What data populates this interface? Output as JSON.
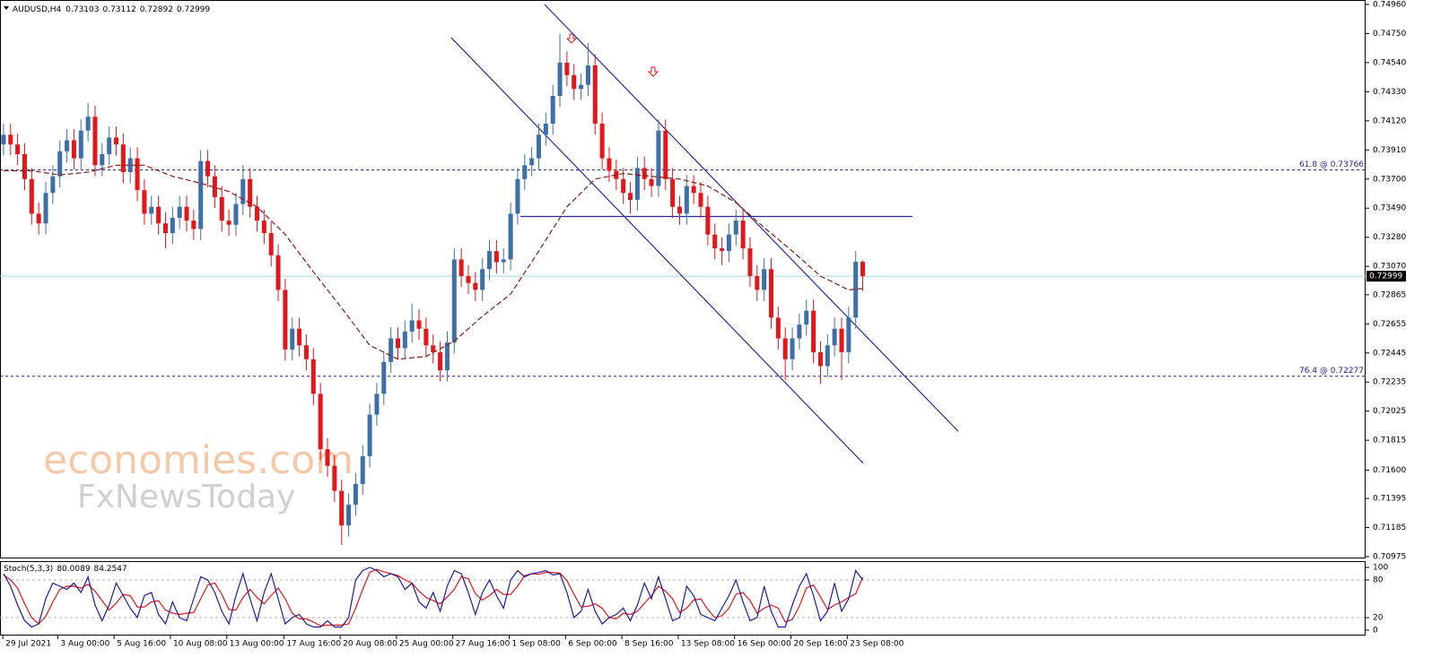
{
  "chart_data": [
    {
      "type": "candlestick",
      "title": "AUDUSD,H4",
      "up_color": "#3d6fa8",
      "down_color": "#e3161b",
      "xlim": [
        0,
        193.9
      ],
      "ylim": [
        0.70975,
        0.7496
      ],
      "xticks": [
        {
          "value": 0.4,
          "label": "29 Jul 2021"
        },
        {
          "value": 8.2,
          "label": "3 Aug 00:00"
        },
        {
          "value": 16.2,
          "label": "5 Aug 16:00"
        },
        {
          "value": 24.2,
          "label": "10 Aug 08:00"
        },
        {
          "value": 32.2,
          "label": "13 Aug 00:00"
        },
        {
          "value": 40.3,
          "label": "17 Aug 16:00"
        },
        {
          "value": 48.3,
          "label": "20 Aug 08:00"
        },
        {
          "value": 56.3,
          "label": "25 Aug 00:00"
        },
        {
          "value": 64.3,
          "label": "27 Aug 16:00"
        },
        {
          "value": 72.3,
          "label": "1 Sep 08:00"
        },
        {
          "value": 80.3,
          "label": "6 Sep 00:00"
        },
        {
          "value": 88.3,
          "label": "8 Sep 16:00"
        },
        {
          "value": 96.3,
          "label": "13 Sep 08:00"
        },
        {
          "value": 104.3,
          "label": "16 Sep 00:00"
        },
        {
          "value": 112.3,
          "label": "20 Sep 16:00"
        },
        {
          "value": 120.3,
          "label": "23 Sep 08:00"
        }
      ],
      "yticks": [
        {
          "value": 0.7496,
          "label": "0.74960"
        },
        {
          "value": 0.7475,
          "label": "0.74750"
        },
        {
          "value": 0.7454,
          "label": "0.74540"
        },
        {
          "value": 0.7433,
          "label": "0.74330"
        },
        {
          "value": 0.7412,
          "label": "0.74120"
        },
        {
          "value": 0.7391,
          "label": "0.73910"
        },
        {
          "value": 0.737,
          "label": "0.73700"
        },
        {
          "value": 0.7349,
          "label": "0.73490"
        },
        {
          "value": 0.7328,
          "label": "0.73280"
        },
        {
          "value": 0.7307,
          "label": "0.73070"
        },
        0.72865,
        0.72655,
        0.72445,
        0.72235,
        0.72025,
        0.71815,
        {
          "value": 0.716,
          "label": "0.71600"
        },
        0.71395,
        0.71185,
        0.70975
      ],
      "candles": {
        "open": [
          0.7395,
          0.7402,
          0.7395,
          0.7388,
          0.737,
          0.7345,
          0.7338,
          0.736,
          0.7372,
          0.739,
          0.7398,
          0.7385,
          0.7405,
          0.7415,
          0.738,
          0.7388,
          0.74,
          0.7395,
          0.7375,
          0.7385,
          0.7362,
          0.7345,
          0.735,
          0.7338,
          0.7331,
          0.7342,
          0.735,
          0.734,
          0.7334,
          0.7383,
          0.7372,
          0.7357,
          0.734,
          0.7337,
          0.7352,
          0.737,
          0.735,
          0.734,
          0.7331,
          0.7315,
          0.729,
          0.7247,
          0.7262,
          0.725,
          0.724,
          0.7215,
          0.7175,
          0.7163,
          0.7145,
          0.712,
          0.7135,
          0.715,
          0.717,
          0.72,
          0.7215,
          0.7238,
          0.7255,
          0.7248,
          0.726,
          0.7268,
          0.7262,
          0.725,
          0.7245,
          0.7232,
          0.7252,
          0.7312,
          0.73,
          0.7295,
          0.729,
          0.7305,
          0.7318,
          0.731,
          0.7312,
          0.7345,
          0.737,
          0.738,
          0.7385,
          0.7402,
          0.741,
          0.743,
          0.7454,
          0.7445,
          0.7435,
          0.7438,
          0.7452,
          0.741,
          0.7385,
          0.7376,
          0.737,
          0.736,
          0.7355,
          0.7378,
          0.737,
          0.7365,
          0.7405,
          0.737,
          0.735,
          0.7345,
          0.7365,
          0.736,
          0.735,
          0.733,
          0.732,
          0.7318,
          0.733,
          0.734,
          0.732,
          0.73,
          0.729,
          0.7305,
          0.727,
          0.7255,
          0.724,
          0.7255,
          0.7265,
          0.7275,
          0.7245,
          0.7235,
          0.725,
          0.7262,
          0.7245,
          0.727,
          0.73103
        ],
        "high": [
          0.741,
          0.741,
          0.7403,
          0.7396,
          0.7378,
          0.7353,
          0.7368,
          0.738,
          0.7398,
          0.7406,
          0.7406,
          0.7413,
          0.7425,
          0.7423,
          0.7396,
          0.7408,
          0.7408,
          0.7403,
          0.7393,
          0.7393,
          0.737,
          0.7358,
          0.7358,
          0.7346,
          0.735,
          0.7358,
          0.7358,
          0.7348,
          0.7391,
          0.7391,
          0.738,
          0.7365,
          0.7348,
          0.736,
          0.738,
          0.7378,
          0.7358,
          0.7348,
          0.7339,
          0.7323,
          0.7298,
          0.727,
          0.727,
          0.7258,
          0.7248,
          0.7223,
          0.7183,
          0.7171,
          0.7153,
          0.7143,
          0.7158,
          0.7178,
          0.7208,
          0.7223,
          0.7246,
          0.7263,
          0.7263,
          0.7268,
          0.728,
          0.7276,
          0.727,
          0.7258,
          0.7253,
          0.726,
          0.732,
          0.732,
          0.7308,
          0.7303,
          0.7313,
          0.7326,
          0.7326,
          0.732,
          0.7353,
          0.7378,
          0.7388,
          0.7393,
          0.741,
          0.7418,
          0.7438,
          0.7475,
          0.7462,
          0.7453,
          0.7446,
          0.7468,
          0.746,
          0.7418,
          0.7393,
          0.7384,
          0.7378,
          0.7368,
          0.7386,
          0.7386,
          0.7378,
          0.7413,
          0.7413,
          0.7378,
          0.7358,
          0.7373,
          0.7373,
          0.7368,
          0.7358,
          0.7338,
          0.7328,
          0.7338,
          0.7348,
          0.7348,
          0.7328,
          0.7308,
          0.7313,
          0.7313,
          0.7278,
          0.7263,
          0.7263,
          0.7273,
          0.7283,
          0.7283,
          0.7253,
          0.7258,
          0.727,
          0.727,
          0.7278,
          0.7318,
          0.73112
        ],
        "low": [
          0.7387,
          0.7387,
          0.738,
          0.7362,
          0.7337,
          0.733,
          0.733,
          0.7352,
          0.7364,
          0.7382,
          0.7377,
          0.7377,
          0.7397,
          0.7372,
          0.7372,
          0.738,
          0.7387,
          0.7367,
          0.7367,
          0.7354,
          0.7337,
          0.7337,
          0.733,
          0.732,
          0.7323,
          0.7334,
          0.7332,
          0.7326,
          0.7326,
          0.7364,
          0.7349,
          0.7332,
          0.7329,
          0.7329,
          0.7344,
          0.7342,
          0.7332,
          0.7323,
          0.7307,
          0.7282,
          0.7239,
          0.7239,
          0.7242,
          0.7232,
          0.7207,
          0.7167,
          0.7155,
          0.7137,
          0.7106,
          0.7112,
          0.7127,
          0.7142,
          0.7162,
          0.7192,
          0.7207,
          0.723,
          0.724,
          0.724,
          0.7252,
          0.7254,
          0.7242,
          0.7237,
          0.7224,
          0.7224,
          0.7244,
          0.7292,
          0.7287,
          0.7282,
          0.7282,
          0.7297,
          0.7302,
          0.7302,
          0.7304,
          0.7337,
          0.7362,
          0.7372,
          0.7377,
          0.7394,
          0.7402,
          0.7422,
          0.7437,
          0.7427,
          0.7427,
          0.743,
          0.7402,
          0.7377,
          0.7368,
          0.7362,
          0.7352,
          0.7345,
          0.7347,
          0.7362,
          0.7357,
          0.7357,
          0.7362,
          0.7342,
          0.7337,
          0.7337,
          0.7352,
          0.7342,
          0.7322,
          0.7312,
          0.7308,
          0.731,
          0.7322,
          0.7312,
          0.7292,
          0.7282,
          0.7282,
          0.7262,
          0.7247,
          0.7225,
          0.7232,
          0.7247,
          0.7257,
          0.7237,
          0.7222,
          0.7227,
          0.7242,
          0.7225,
          0.7237,
          0.7262,
          0.72892
        ],
        "close": [
          0.7402,
          0.7395,
          0.7388,
          0.737,
          0.7345,
          0.7338,
          0.736,
          0.7372,
          0.739,
          0.7398,
          0.7385,
          0.7405,
          0.7415,
          0.738,
          0.7388,
          0.74,
          0.7395,
          0.7375,
          0.7385,
          0.7362,
          0.7345,
          0.735,
          0.7338,
          0.7331,
          0.7342,
          0.735,
          0.734,
          0.7334,
          0.7383,
          0.7372,
          0.7357,
          0.734,
          0.7337,
          0.7352,
          0.737,
          0.735,
          0.734,
          0.7331,
          0.7315,
          0.729,
          0.7247,
          0.7262,
          0.725,
          0.724,
          0.7215,
          0.7175,
          0.7163,
          0.7145,
          0.712,
          0.7135,
          0.715,
          0.717,
          0.72,
          0.7215,
          0.7238,
          0.7255,
          0.7248,
          0.726,
          0.7268,
          0.7262,
          0.725,
          0.7245,
          0.7232,
          0.7252,
          0.7312,
          0.73,
          0.7295,
          0.729,
          0.7305,
          0.7318,
          0.731,
          0.7312,
          0.7345,
          0.737,
          0.738,
          0.7385,
          0.7402,
          0.741,
          0.743,
          0.7454,
          0.7445,
          0.7435,
          0.7438,
          0.7452,
          0.741,
          0.7385,
          0.7376,
          0.737,
          0.736,
          0.7355,
          0.7378,
          0.737,
          0.7365,
          0.7405,
          0.737,
          0.735,
          0.7345,
          0.7365,
          0.736,
          0.735,
          0.733,
          0.732,
          0.7318,
          0.733,
          0.734,
          0.732,
          0.73,
          0.729,
          0.7305,
          0.727,
          0.7255,
          0.724,
          0.7255,
          0.7265,
          0.7275,
          0.7245,
          0.7235,
          0.725,
          0.7262,
          0.7245,
          0.727,
          0.73103,
          0.72999
        ]
      },
      "moving_average": {
        "color": "#8b1a1a",
        "x": [
          0,
          4,
          8,
          12,
          16,
          20,
          24,
          28,
          32,
          36,
          40,
          44,
          48,
          52,
          56,
          60,
          64,
          68,
          72,
          76,
          80,
          84,
          88,
          92,
          96,
          100,
          104,
          108,
          112,
          116,
          120,
          122
        ],
        "values": [
          0.7376,
          0.7376,
          0.7373,
          0.7375,
          0.738,
          0.738,
          0.7372,
          0.7367,
          0.7361,
          0.735,
          0.733,
          0.7303,
          0.7277,
          0.725,
          0.724,
          0.7242,
          0.7253,
          0.7271,
          0.7287,
          0.7318,
          0.735,
          0.737,
          0.7374,
          0.7372,
          0.737,
          0.7365,
          0.7353,
          0.7335,
          0.7318,
          0.73,
          0.729,
          0.7291
        ]
      },
      "levels": [
        {
          "label": "61.8 @ 0.73766",
          "value": 0.73766,
          "color": "#1c1c9c"
        },
        {
          "label": "76.4 @ 0.72277",
          "value": 0.72277,
          "color": "#1c1c9c"
        }
      ],
      "trendlines": [
        {
          "x": [
            64.08,
            122.55
          ],
          "values": [
            0.7472,
            0.7165
          ],
          "color": "#2b2b9c"
        },
        {
          "x": [
            77.32,
            136.05
          ],
          "values": [
            0.7496,
            0.7188
          ],
          "color": "#2b2b9c"
        },
        {
          "x": [
            73.9,
            129.55
          ],
          "values": [
            0.7343,
            0.7343
          ],
          "color": "#2b2b9c"
        }
      ],
      "price_line_color": "#a9dbe3",
      "watermark": [
        "economies.com",
        "FxNewsToday"
      ]
    },
    {
      "type": "stochastic",
      "title": "Stoch(5,3,3)",
      "ylim": [
        0,
        100
      ],
      "yticks": [
        0,
        20,
        80,
        100
      ],
      "levels": [
        20,
        80
      ],
      "series": [
        {
          "color": "#1c1c9c",
          "values": [
            90,
            70,
            40,
            15,
            5,
            10,
            50,
            75,
            70,
            65,
            75,
            60,
            85,
            40,
            15,
            40,
            75,
            55,
            35,
            20,
            55,
            60,
            25,
            10,
            45,
            20,
            15,
            50,
            85,
            80,
            60,
            30,
            10,
            55,
            90,
            50,
            15,
            60,
            90,
            50,
            10,
            20,
            25,
            10,
            5,
            5,
            15,
            5,
            5,
            20,
            80,
            95,
            100,
            95,
            85,
            90,
            85,
            65,
            75,
            45,
            35,
            60,
            30,
            70,
            95,
            90,
            60,
            25,
            60,
            80,
            55,
            35,
            80,
            95,
            85,
            90,
            92,
            95,
            88,
            90,
            60,
            20,
            30,
            65,
            30,
            10,
            20,
            25,
            35,
            15,
            40,
            75,
            50,
            85,
            50,
            15,
            20,
            70,
            55,
            25,
            20,
            15,
            35,
            55,
            80,
            45,
            15,
            20,
            70,
            30,
            5,
            5,
            40,
            70,
            90,
            55,
            15,
            30,
            75,
            30,
            50,
            95,
            80.0089
          ]
        },
        {
          "color": "#e3161b",
          "values": [
            88,
            80,
            67,
            42,
            20,
            10,
            22,
            45,
            65,
            70,
            70,
            67,
            73,
            62,
            47,
            32,
            43,
            57,
            55,
            37,
            37,
            45,
            47,
            32,
            27,
            25,
            27,
            28,
            50,
            72,
            75,
            57,
            33,
            32,
            52,
            65,
            52,
            42,
            55,
            67,
            50,
            27,
            18,
            18,
            13,
            7,
            8,
            8,
            8,
            10,
            35,
            65,
            92,
            97,
            93,
            90,
            87,
            80,
            75,
            62,
            52,
            47,
            42,
            53,
            65,
            85,
            82,
            58,
            48,
            55,
            65,
            57,
            57,
            70,
            87,
            90,
            89,
            92,
            92,
            91,
            79,
            57,
            37,
            38,
            42,
            35,
            20,
            18,
            27,
            25,
            30,
            43,
            55,
            70,
            62,
            50,
            28,
            35,
            48,
            50,
            33,
            20,
            23,
            35,
            57,
            60,
            47,
            27,
            35,
            40,
            35,
            13,
            17,
            38,
            67,
            72,
            53,
            33,
            40,
            45,
            52,
            58,
            84.2547
          ]
        }
      ]
    }
  ]
}
